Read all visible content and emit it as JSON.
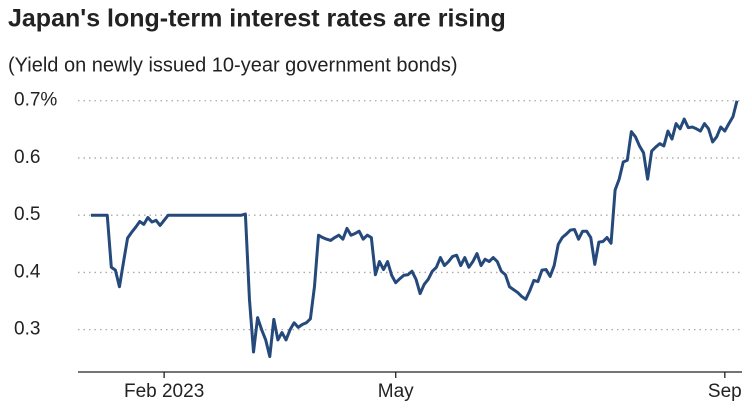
{
  "chart_data": {
    "type": "line",
    "title": "Japan's long-term interest rates are rising",
    "subtitle": "(Yield on newly issued 10-year government bonds)",
    "categories": [
      null,
      null,
      null,
      null,
      null,
      null,
      null,
      null,
      null,
      null,
      null,
      null,
      null,
      null,
      null,
      null,
      null,
      null,
      "Feb 2023",
      null,
      null,
      null,
      null,
      null,
      null,
      null,
      null,
      null,
      null,
      null,
      null,
      null,
      null,
      null,
      null,
      null,
      null,
      null,
      null,
      null,
      null,
      null,
      null,
      null,
      null,
      null,
      null,
      null,
      null,
      null,
      null,
      null,
      null,
      null,
      null,
      null,
      null,
      null,
      null,
      null,
      null,
      null,
      null,
      null,
      null,
      null,
      null,
      null,
      null,
      null,
      null,
      null,
      null,
      null,
      null,
      "May",
      null,
      null,
      null,
      null,
      null,
      null,
      null,
      null,
      null,
      null,
      null,
      null,
      null,
      null,
      null,
      null,
      null,
      null,
      null,
      null,
      null,
      null,
      null,
      null,
      null,
      null,
      null,
      null,
      null,
      null,
      null,
      null,
      null,
      null,
      null,
      null,
      null,
      null,
      null,
      null,
      null,
      null,
      null,
      null,
      null,
      null,
      null,
      null,
      null,
      null,
      null,
      null,
      null,
      null,
      null,
      null,
      null,
      null,
      null,
      null,
      null,
      null,
      null,
      null,
      null,
      null,
      null,
      null,
      null,
      null,
      null,
      null,
      null,
      null,
      null,
      null,
      null,
      null,
      null,
      null,
      "Sep",
      null,
      null,
      null
    ],
    "series": [
      {
        "color": "#24497a",
        "values": [
          0.5,
          0.5,
          0.5,
          0.5,
          0.5,
          0.409,
          0.404,
          0.375,
          0.418,
          0.46,
          0.47,
          0.479,
          0.489,
          0.484,
          0.496,
          0.488,
          0.491,
          0.482,
          0.491,
          0.5,
          0.5,
          0.5,
          0.5,
          0.5,
          0.5,
          0.5,
          0.5,
          0.5,
          0.5,
          0.5,
          0.5,
          0.5,
          0.5,
          0.5,
          0.5,
          0.5,
          0.5,
          0.5,
          0.502,
          0.353,
          0.261,
          0.321,
          0.3,
          0.282,
          0.253,
          0.318,
          0.282,
          0.295,
          0.282,
          0.3,
          0.312,
          0.304,
          0.309,
          0.312,
          0.319,
          0.375,
          0.465,
          0.461,
          0.458,
          0.456,
          0.461,
          0.465,
          0.458,
          0.477,
          0.465,
          0.468,
          0.472,
          0.458,
          0.465,
          0.461,
          0.396,
          0.419,
          0.405,
          0.419,
          0.395,
          0.382,
          0.389,
          0.395,
          0.396,
          0.402,
          0.388,
          0.363,
          0.379,
          0.388,
          0.402,
          0.409,
          0.426,
          0.412,
          0.419,
          0.428,
          0.43,
          0.412,
          0.426,
          0.409,
          0.419,
          0.433,
          0.412,
          0.423,
          0.419,
          0.426,
          0.419,
          0.402,
          0.396,
          0.375,
          0.37,
          0.365,
          0.358,
          0.353,
          0.368,
          0.386,
          0.384,
          0.404,
          0.405,
          0.393,
          0.412,
          0.449,
          0.461,
          0.467,
          0.474,
          0.475,
          0.458,
          0.472,
          0.472,
          0.461,
          0.414,
          0.453,
          0.454,
          0.461,
          0.451,
          0.544,
          0.563,
          0.593,
          0.596,
          0.646,
          0.637,
          0.621,
          0.609,
          0.563,
          0.612,
          0.619,
          0.625,
          0.621,
          0.647,
          0.633,
          0.66,
          0.651,
          0.668,
          0.653,
          0.654,
          0.651,
          0.647,
          0.66,
          0.651,
          0.628,
          0.637,
          0.654,
          0.647,
          0.66,
          0.672,
          0.7
        ]
      }
    ],
    "ylim": [
      0.226,
      0.71
    ],
    "yticks": [
      0.3,
      0.4,
      0.5,
      0.6,
      {
        "value": 0.7,
        "label": "0.7%"
      }
    ],
    "grid": true
  }
}
